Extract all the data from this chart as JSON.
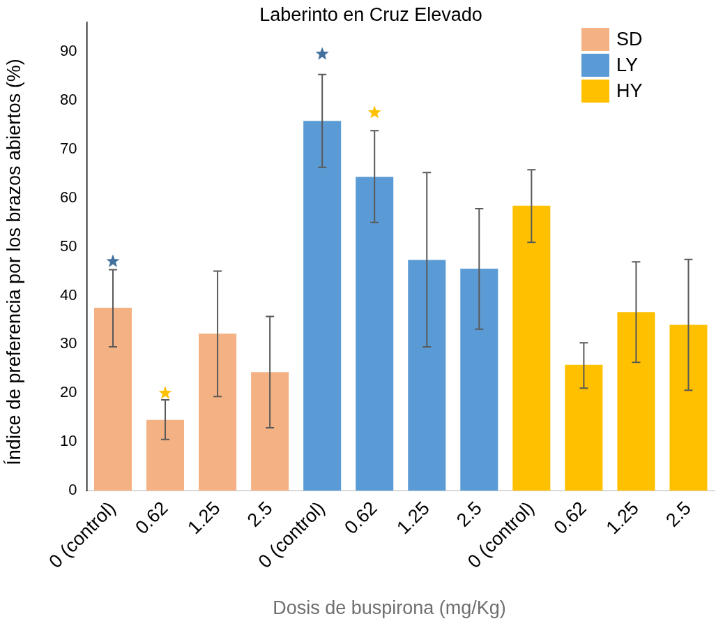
{
  "chart_data": {
    "type": "bar",
    "title": "Laberinto en Cruz Elevado",
    "xlabel": "Dosis de buspirona (mg/Kg)",
    "ylabel": "Índice de preferencia por los brazos abiertos (%)",
    "categories": [
      "0 (control)",
      "0.62",
      "1.25",
      "2.5",
      "0 (control)",
      "0.62",
      "1.25",
      "2.5",
      "0 (control)",
      "0.62",
      "1.25",
      "2.5"
    ],
    "series": [
      {
        "name": "SD",
        "color": "#f4b183",
        "values": [
          37.5,
          14.5,
          32.2,
          24.3,
          null,
          null,
          null,
          null,
          null,
          null,
          null,
          null
        ],
        "errors": [
          [
            29.5,
            45.3
          ],
          [
            10.5,
            18.6
          ],
          [
            19.3,
            45
          ],
          [
            12.9,
            35.7
          ],
          null,
          null,
          null,
          null,
          null,
          null,
          null,
          null
        ]
      },
      {
        "name": "LY",
        "color": "#5b9bd5",
        "values": [
          null,
          null,
          null,
          null,
          75.8,
          64.3,
          47.3,
          45.5,
          null,
          null,
          null,
          null
        ],
        "errors": [
          null,
          null,
          null,
          null,
          [
            66.3,
            85.3
          ],
          [
            55,
            73.8
          ],
          [
            29.5,
            65.2
          ],
          [
            33.1,
            57.8
          ],
          null,
          null,
          null,
          null
        ]
      },
      {
        "name": "HY",
        "color": "#ffc000",
        "values": [
          null,
          null,
          null,
          null,
          null,
          null,
          null,
          null,
          58.4,
          25.8,
          36.6,
          34
        ],
        "errors": [
          null,
          null,
          null,
          null,
          null,
          null,
          null,
          null,
          [
            50.9,
            65.8
          ],
          [
            21,
            30.3
          ],
          [
            26.3,
            46.9
          ],
          [
            20.6,
            47.4
          ]
        ]
      },
      {
        "type": "scatter",
        "marker": "star",
        "colors": [
          "#41719c",
          "#ffc000",
          null,
          null,
          "#41719c",
          "#ffc000",
          null,
          null,
          null,
          null,
          null,
          null
        ],
        "values": [
          47,
          20,
          null,
          null,
          89.5,
          77.5,
          null,
          null,
          null,
          null,
          null,
          null
        ]
      }
    ],
    "ylim": [
      0,
      96
    ],
    "yticks": [
      0,
      10,
      20,
      30,
      40,
      50,
      60,
      70,
      80,
      90
    ],
    "grid": false,
    "legend": "top right"
  }
}
